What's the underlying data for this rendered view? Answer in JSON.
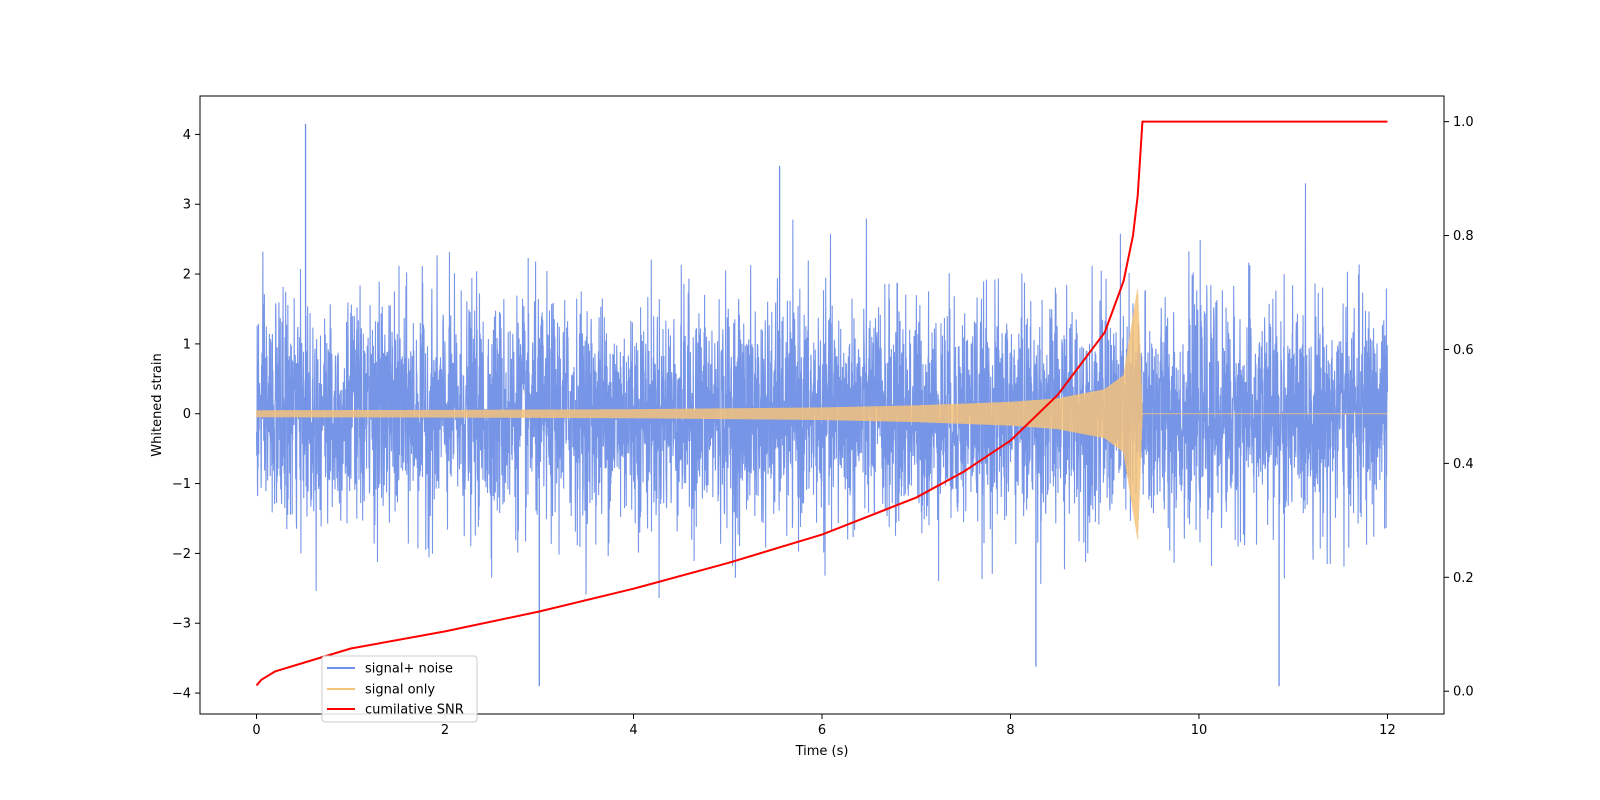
{
  "chart_data": {
    "type": "line",
    "xlabel": "Time (s)",
    "ylabel": "Whitened strain",
    "xlim": [
      -0.6,
      12.6
    ],
    "ylim": [
      -4.3,
      4.55
    ],
    "y2lim": [
      -0.04,
      1.045
    ],
    "x_ticks": [
      0,
      2,
      4,
      6,
      8,
      10,
      12
    ],
    "y_ticks": [
      -4,
      -3,
      -2,
      -1,
      0,
      1,
      2,
      3,
      4
    ],
    "y2_ticks": [
      0.0,
      0.2,
      0.4,
      0.6,
      0.8,
      1.0
    ],
    "x_tick_labels": [
      "0",
      "2",
      "4",
      "6",
      "8",
      "10",
      "12"
    ],
    "y_tick_labels": [
      "−4",
      "−3",
      "−2",
      "−1",
      "0",
      "1",
      "2",
      "3",
      "4"
    ],
    "y2_tick_labels": [
      "0.0",
      "0.2",
      "0.4",
      "0.6",
      "0.8",
      "1.0"
    ],
    "legend_position": "lower-left",
    "series": [
      {
        "name": "signal+ noise",
        "color": "#6f8fe6",
        "axis": "left",
        "description_range": [
          -3.9,
          4.15
        ],
        "notable_peaks": [
          {
            "x": 0.52,
            "y": 4.15
          },
          {
            "x": 3.0,
            "y": -3.9
          },
          {
            "x": 5.55,
            "y": 3.55
          },
          {
            "x": 10.85,
            "y": -3.9
          },
          {
            "x": 8.27,
            "y": -3.62
          }
        ]
      },
      {
        "name": "signal only",
        "color": "#f5c27a",
        "axis": "left",
        "envelope": [
          {
            "x": 0.0,
            "amp": 0.05
          },
          {
            "x": 2.0,
            "amp": 0.055
          },
          {
            "x": 4.0,
            "amp": 0.065
          },
          {
            "x": 6.0,
            "amp": 0.09
          },
          {
            "x": 7.0,
            "amp": 0.12
          },
          {
            "x": 8.0,
            "amp": 0.17
          },
          {
            "x": 8.5,
            "amp": 0.22
          },
          {
            "x": 9.0,
            "amp": 0.35
          },
          {
            "x": 9.2,
            "amp": 0.55
          },
          {
            "x": 9.35,
            "amp": 1.8
          },
          {
            "x": 9.4,
            "amp": 0.0
          },
          {
            "x": 12.0,
            "amp": 0.0
          }
        ]
      },
      {
        "name": "cumilative SNR",
        "color": "#ff0000",
        "axis": "right",
        "x": [
          0.0,
          0.05,
          0.2,
          0.5,
          1.0,
          2.0,
          3.0,
          4.0,
          5.0,
          6.0,
          7.0,
          7.5,
          8.0,
          8.5,
          9.0,
          9.2,
          9.3,
          9.35,
          9.4,
          12.0
        ],
        "values": [
          0.01,
          0.02,
          0.035,
          0.05,
          0.075,
          0.105,
          0.14,
          0.18,
          0.225,
          0.275,
          0.34,
          0.385,
          0.44,
          0.52,
          0.63,
          0.72,
          0.8,
          0.87,
          1.0,
          1.0
        ]
      }
    ]
  }
}
